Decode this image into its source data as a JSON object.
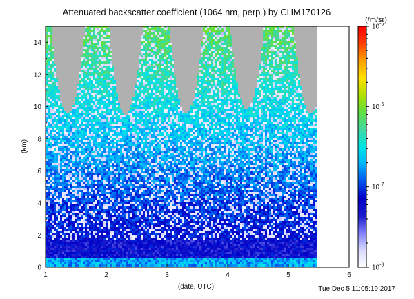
{
  "chart_data": {
    "type": "heatmap",
    "title": "Attenuated backscatter coefficient (1064 nm, perp.) by CHM170126",
    "xlabel": "(date, UTC)",
    "ylabel": "(km)",
    "xlim": [
      1,
      6
    ],
    "ylim": [
      0,
      15
    ],
    "x_ticks": [
      "1",
      "2",
      "3",
      "4",
      "5",
      "6"
    ],
    "y_ticks": [
      "0",
      "2",
      "4",
      "6",
      "8",
      "10",
      "12",
      "14"
    ],
    "data_end_x": 5.45,
    "colorbar": {
      "label": "(/m/sr)",
      "scale": "log",
      "range": [
        1e-08,
        1e-05
      ],
      "tick_labels": [
        {
          "base": "10",
          "exp": "-5",
          "value": 1e-05
        },
        {
          "base": "10",
          "exp": "-6",
          "value": 1e-06
        },
        {
          "base": "10",
          "exp": "-7",
          "value": 1e-07
        },
        {
          "base": "10",
          "exp": "-8",
          "value": 1e-08
        }
      ],
      "colors": [
        "#ffffff",
        "#d8d8ff",
        "#8080ff",
        "#1a1acc",
        "#0000c8",
        "#0055ee",
        "#00b4ff",
        "#00e6e6",
        "#40d8a0",
        "#60e040",
        "#b0e000",
        "#ffe000",
        "#ffa000",
        "#ff4000",
        "#ff0000"
      ]
    },
    "no_data_color": "#b0b0b0",
    "cloud_free_top_km": [
      {
        "x": 1.35,
        "km": 9.6
      },
      {
        "x": 2.3,
        "km": 9.5
      },
      {
        "x": 3.3,
        "km": 9.6
      },
      {
        "x": 4.3,
        "km": 9.9
      },
      {
        "x": 5.35,
        "km": 9.6
      }
    ],
    "surface_layer_km": 0.6,
    "boundary_layer_top_km": 1.8
  },
  "footer": {
    "timestamp": "Tue Dec  5 11:05:19 2017"
  }
}
